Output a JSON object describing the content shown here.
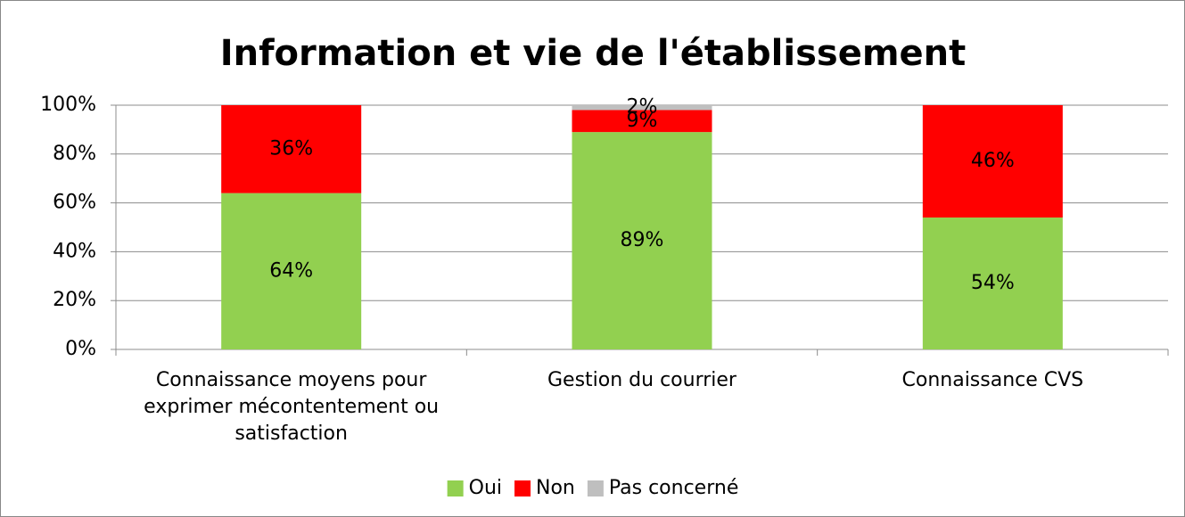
{
  "chart_data": {
    "type": "stacked_bar",
    "title": "Information et vie de l'établissement",
    "categories": [
      "Connaissance moyens pour exprimer mécontentement ou satisfaction",
      "Gestion du courrier",
      "Connaissance CVS"
    ],
    "series": [
      {
        "name": "Oui",
        "color": "#92d050",
        "values": [
          64,
          89,
          54
        ],
        "value_labels": [
          "64%",
          "89%",
          "54%"
        ]
      },
      {
        "name": "Non",
        "color": "#ff0000",
        "values": [
          36,
          9,
          46
        ],
        "value_labels": [
          "36%",
          "9%",
          "46%"
        ]
      },
      {
        "name": "Pas concerné",
        "color": "#bfbfbf",
        "values": [
          0,
          2,
          0
        ],
        "value_labels": [
          null,
          "2%",
          null
        ]
      }
    ],
    "ylim": [
      0,
      100
    ],
    "yticks": [
      {
        "value": 0,
        "label": "0%"
      },
      {
        "value": 20,
        "label": "20%"
      },
      {
        "value": 40,
        "label": "40%"
      },
      {
        "value": 60,
        "label": "60%"
      },
      {
        "value": 80,
        "label": "80%"
      },
      {
        "value": 100,
        "label": "100%"
      }
    ],
    "grid": true,
    "legend": "bottom"
  }
}
